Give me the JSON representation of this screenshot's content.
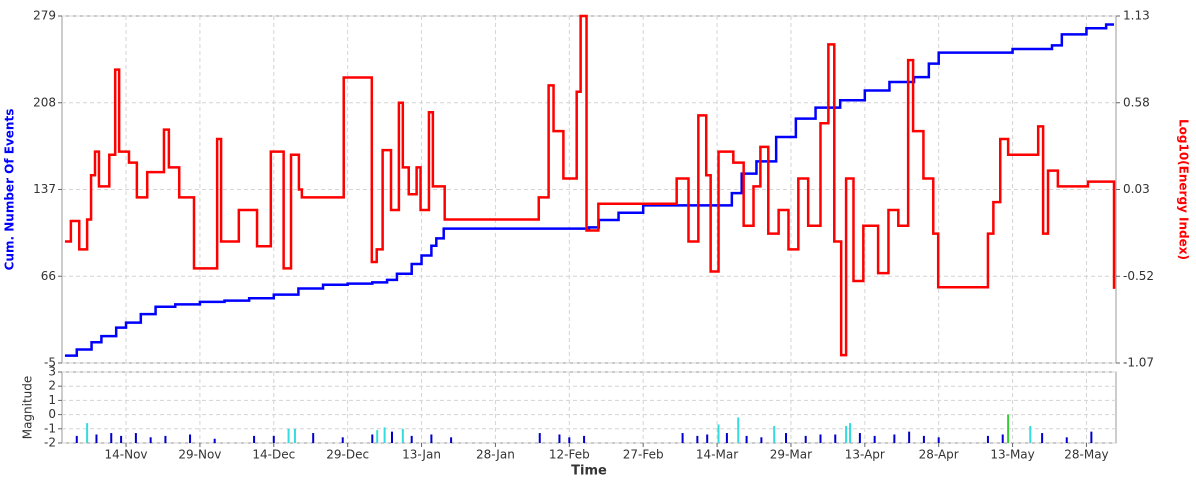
{
  "chart_data": [
    {
      "type": "line",
      "step": true,
      "grid": true,
      "ylabel": "Cum. Number Of Events",
      "y2label": "Log10(Energy Index)",
      "xlim": [
        -13,
        201
      ],
      "ylim": [
        -5,
        279
      ],
      "yticks": [
        279,
        208,
        137,
        66,
        -5
      ],
      "y2lim": [
        -1.07,
        1.13
      ],
      "y2ticks": [
        1.13,
        0.58,
        0.03,
        -0.52,
        -1.07
      ],
      "series": [
        {
          "color": "#0000ff",
          "x": [
            -12.4,
            -10,
            -7,
            -5,
            -2,
            0,
            3,
            6,
            10,
            15,
            20,
            25,
            30,
            35,
            40,
            45,
            50,
            53,
            55,
            58,
            60,
            62,
            63,
            64.5,
            94,
            96,
            100,
            105,
            122,
            123,
            125,
            128,
            132,
            136,
            140,
            145,
            150,
            155,
            160,
            163,
            165,
            180,
            188,
            190,
            195,
            199,
            200.6
          ],
          "values": [
            1,
            6,
            12,
            17,
            24,
            28,
            35,
            41,
            43,
            45,
            46,
            48,
            51,
            56,
            59,
            60,
            61,
            63,
            68,
            76,
            83,
            91,
            97,
            105,
            106,
            112,
            118,
            124,
            124,
            134,
            150,
            160,
            180,
            195,
            204,
            210,
            218,
            225,
            229,
            240,
            249,
            252,
            255,
            264,
            269,
            272,
            272
          ]
        },
        {
          "color": "#ff0000",
          "axis": "y2",
          "x": [
            -12.4,
            -11.2,
            -9.5,
            -7.9,
            -7.1,
            -6.3,
            -5.5,
            -3.4,
            -2.2,
            -1.4,
            0.6,
            2.2,
            4.3,
            7.7,
            8.7,
            10.8,
            13.8,
            18.5,
            19.3,
            22.9,
            26.6,
            29.4,
            32,
            33.5,
            35.1,
            35.7,
            44.2,
            49.9,
            50.9,
            52.1,
            53.8,
            55.4,
            56.2,
            57.4,
            59,
            59.8,
            61.5,
            62.3,
            64.7,
            83.8,
            85.8,
            86.8,
            88.8,
            91.5,
            92.3,
            93.5,
            95.9,
            111.8,
            114.2,
            116.2,
            117.8,
            118.7,
            120.3,
            123.3,
            125.4,
            127.4,
            128.8,
            130.4,
            132.5,
            134.5,
            136.5,
            138.5,
            141,
            142.6,
            143.8,
            145.2,
            146.2,
            147.7,
            149.7,
            152.7,
            154.8,
            156.8,
            158.8,
            159.8,
            161.9,
            163.9,
            164.9,
            175,
            176.1,
            177.5,
            179.1,
            183.2,
            185.2,
            186.2,
            187.2,
            189.2,
            195.3,
            200.6
          ],
          "values": [
            -0.3,
            -0.17,
            -0.35,
            -0.16,
            0.12,
            0.27,
            0.05,
            0.25,
            0.79,
            0.27,
            0.2,
            -0.02,
            0.14,
            0.41,
            0.17,
            -0.02,
            -0.47,
            0.35,
            -0.3,
            -0.1,
            -0.33,
            0.27,
            -0.47,
            0.25,
            0.03,
            -0.02,
            0.74,
            -0.43,
            -0.35,
            0.28,
            -0.1,
            0.58,
            0.17,
            0.0,
            0.17,
            -0.1,
            0.52,
            0.05,
            -0.16,
            -0.02,
            0.69,
            0.4,
            0.1,
            0.65,
            1.13,
            -0.23,
            -0.06,
            0.1,
            -0.3,
            0.5,
            0.12,
            -0.49,
            0.27,
            0.2,
            -0.2,
            0.05,
            0.3,
            -0.25,
            -0.1,
            -0.35,
            0.1,
            -0.2,
            0.45,
            0.95,
            -0.3,
            -1.02,
            0.1,
            -0.55,
            -0.2,
            -0.5,
            -0.1,
            -0.2,
            0.85,
            0.4,
            0.1,
            -0.25,
            -0.59,
            -0.25,
            -0.05,
            0.35,
            0.25,
            0.25,
            0.43,
            -0.25,
            0.15,
            0.05,
            0.08,
            -0.6
          ]
        }
      ]
    },
    {
      "type": "bar",
      "grid": true,
      "ylabel": "Magnitude",
      "xlabel": "Time",
      "xlim": [
        -13,
        201
      ],
      "xticks": [
        {
          "value": 0,
          "label": "14-Nov"
        },
        {
          "value": 15,
          "label": "29-Nov"
        },
        {
          "value": 30,
          "label": "14-Dec"
        },
        {
          "value": 45,
          "label": "29-Dec"
        },
        {
          "value": 60,
          "label": "13-Jan"
        },
        {
          "value": 75,
          "label": "28-Jan"
        },
        {
          "value": 90,
          "label": "12-Feb"
        },
        {
          "value": 105,
          "label": "27-Feb"
        },
        {
          "value": 120,
          "label": "14-Mar"
        },
        {
          "value": 135,
          "label": "29-Mar"
        },
        {
          "value": 150,
          "label": "13-Apr"
        },
        {
          "value": 165,
          "label": "28-Apr"
        },
        {
          "value": 180,
          "label": "13-May"
        },
        {
          "value": 195,
          "label": "28-May"
        }
      ],
      "ylim": [
        -2,
        3
      ],
      "yticks": [
        3,
        2,
        1,
        0,
        -1,
        -2
      ],
      "series": [
        {
          "color": "#0000cc",
          "x": [
            -10,
            -6,
            -3,
            -1,
            2,
            5,
            8,
            13,
            18,
            26,
            30,
            38,
            44,
            50,
            54,
            58,
            62,
            66,
            84,
            88,
            90,
            93,
            113,
            116,
            118,
            122,
            126,
            129,
            134,
            138,
            141,
            144,
            149,
            152,
            156,
            159,
            162,
            165,
            175,
            178,
            186,
            191,
            196
          ],
          "values": [
            -1.5,
            -1.4,
            -1.3,
            -1.5,
            -1.3,
            -1.6,
            -1.5,
            -1.4,
            -1.7,
            -1.5,
            -1.5,
            -1.3,
            -1.6,
            -1.4,
            -1.2,
            -1.5,
            -1.4,
            -1.6,
            -1.3,
            -1.4,
            -1.6,
            -1.5,
            -1.3,
            -1.5,
            -1.4,
            -1.3,
            -1.5,
            -1.6,
            -1.3,
            -1.5,
            -1.4,
            -1.4,
            -1.3,
            -1.5,
            -1.4,
            -1.2,
            -1.5,
            -1.6,
            -1.5,
            -1.4,
            -1.3,
            -1.6,
            -1.2
          ]
        },
        {
          "color": "#33dddd",
          "x": [
            -7.9,
            33,
            34.3,
            51,
            52.5,
            56.2,
            120.3,
            124.3,
            131.6,
            146.2,
            147,
            183.6
          ],
          "values": [
            -0.6,
            -1.0,
            -1.0,
            -1.1,
            -0.9,
            -1.0,
            -0.7,
            -0.2,
            -0.8,
            -0.8,
            -0.6,
            -0.8
          ]
        },
        {
          "color": "#33cc33",
          "x": [
            179.1
          ],
          "values": [
            0.0
          ]
        }
      ]
    }
  ]
}
